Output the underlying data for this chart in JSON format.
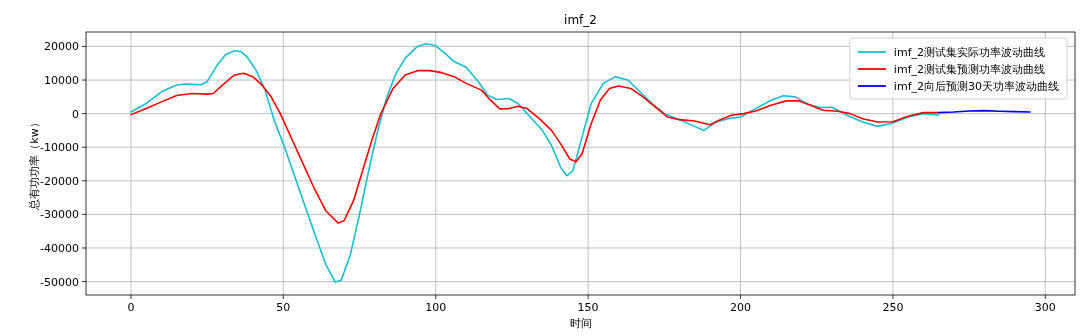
{
  "chart_data": {
    "type": "line",
    "title": "imf_2",
    "xlabel": "时间",
    "ylabel": "总有功功率（kw）",
    "xlim": [
      -14.75,
      309.75
    ],
    "ylim": [
      -54000,
      24300
    ],
    "xticks": [
      0,
      50,
      100,
      150,
      200,
      250,
      300
    ],
    "yticks": [
      -50000,
      -40000,
      -30000,
      -20000,
      -10000,
      0,
      10000,
      20000
    ],
    "grid": true,
    "legend": "top right",
    "marker": "none",
    "line_style": "solid",
    "series": [
      {
        "name": "imf_2测试集实际功率波动曲线",
        "color": "#17becf",
        "x": [
          0,
          5,
          10,
          15,
          18,
          20,
          23,
          25,
          28,
          31,
          34,
          36,
          38,
          41,
          44,
          47,
          50,
          55,
          60,
          64,
          67,
          69,
          72,
          75,
          78,
          81,
          84,
          87,
          90,
          94,
          97,
          100,
          103,
          106,
          110,
          114,
          117,
          120,
          124,
          127,
          131,
          135,
          138,
          141,
          143,
          145,
          148,
          151,
          155,
          159,
          163,
          167,
          171,
          175,
          180,
          185,
          188,
          192,
          196,
          200,
          205,
          210,
          214,
          218,
          222,
          226,
          230,
          235,
          240,
          245,
          250,
          255,
          260,
          265
        ],
        "values": [
          500,
          3000,
          6500,
          8500,
          8800,
          8700,
          8600,
          9500,
          14000,
          17500,
          18700,
          18500,
          17000,
          13000,
          7000,
          -2000,
          -9000,
          -22000,
          -35000,
          -45000,
          -50200,
          -49500,
          -42000,
          -30000,
          -17000,
          -5000,
          5000,
          12000,
          16500,
          20000,
          20800,
          20200,
          18000,
          15500,
          13800,
          9500,
          5500,
          4200,
          4500,
          3000,
          -1000,
          -5000,
          -9500,
          -16000,
          -18500,
          -17000,
          -7000,
          3000,
          9000,
          11000,
          10000,
          6500,
          3000,
          0,
          -1800,
          -3800,
          -5000,
          -2500,
          -1500,
          -1000,
          1500,
          4000,
          5300,
          5000,
          2800,
          1800,
          1900,
          -500,
          -2500,
          -3800,
          -2800,
          -1000,
          0,
          -400
        ]
      },
      {
        "name": "imf_2测试集预测功率波动曲线",
        "color": "#ff0000",
        "x": [
          0,
          5,
          10,
          15,
          20,
          25,
          27,
          30,
          34,
          37,
          40,
          43,
          46,
          49,
          52,
          56,
          60,
          64,
          68,
          70,
          73,
          76,
          79,
          82,
          86,
          90,
          94,
          98,
          102,
          106,
          110,
          115,
          118,
          121,
          124,
          127,
          130,
          134,
          138,
          141,
          144,
          146,
          148,
          151,
          154,
          157,
          160,
          164,
          168,
          172,
          176,
          180,
          185,
          190,
          193,
          197,
          201,
          205,
          210,
          215,
          219,
          223,
          227,
          232,
          236,
          240,
          245,
          250,
          255,
          260,
          265
        ],
        "values": [
          -300,
          1500,
          3500,
          5400,
          6000,
          5800,
          6000,
          8500,
          11500,
          12000,
          11000,
          8500,
          5000,
          0,
          -6000,
          -14000,
          -22000,
          -29000,
          -32600,
          -31800,
          -26000,
          -17000,
          -8000,
          0,
          7500,
          11500,
          12800,
          12800,
          12200,
          11000,
          9000,
          7000,
          4000,
          1400,
          1500,
          2200,
          1500,
          -1500,
          -5000,
          -9000,
          -13500,
          -14300,
          -12000,
          -3000,
          4000,
          7500,
          8200,
          7500,
          5000,
          2000,
          -1000,
          -1800,
          -2200,
          -3300,
          -2000,
          -500,
          0,
          800,
          2500,
          3800,
          3800,
          2500,
          1000,
          700,
          0,
          -1500,
          -2500,
          -2400,
          -800,
          300,
          300
        ]
      },
      {
        "name": "imf_2向后预测30天功率波动曲线",
        "color": "#0000ff",
        "x": [
          265,
          270,
          275,
          280,
          285,
          290,
          295
        ],
        "values": [
          300,
          500,
          800,
          900,
          700,
          600,
          500
        ]
      }
    ]
  }
}
